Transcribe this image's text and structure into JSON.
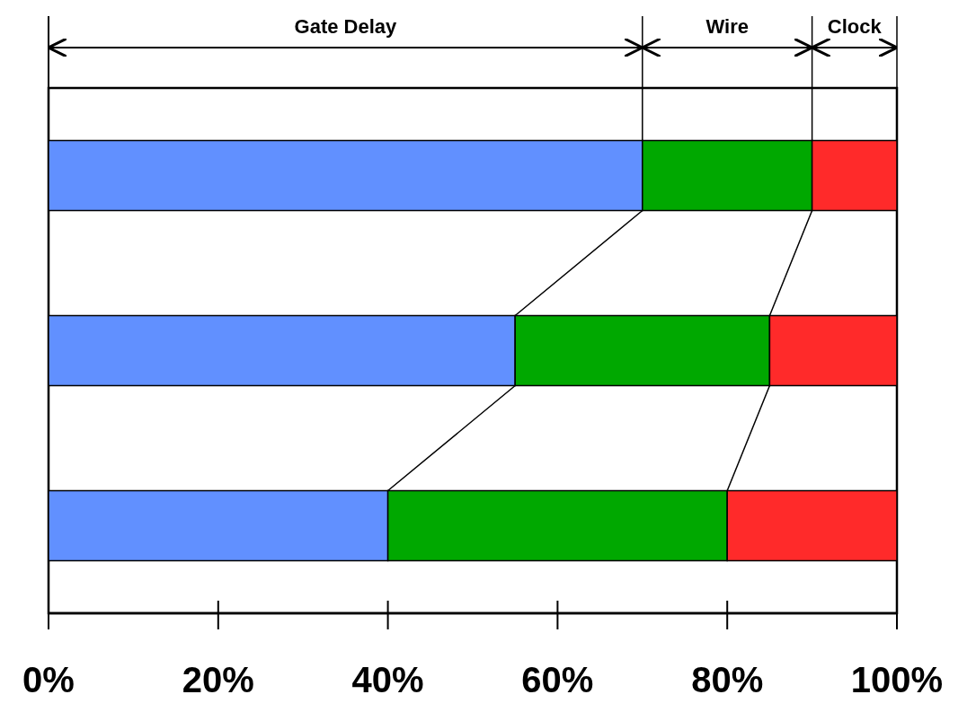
{
  "chart_data": {
    "type": "bar",
    "orientation": "horizontal",
    "stacked": true,
    "categories": [
      null,
      null,
      null
    ],
    "series": [
      {
        "color": "#6190ff",
        "values": [
          70,
          55,
          40
        ]
      },
      {
        "color": "#00a800",
        "values": [
          20,
          30,
          40
        ]
      },
      {
        "color": "#ff2a2a",
        "values": [
          10,
          15,
          20
        ]
      }
    ],
    "annotations": [
      "Gate Delay",
      "Wire",
      "Clock"
    ],
    "xlim": [
      0,
      100
    ],
    "xticks": [
      {
        "value": 0,
        "label": "0%"
      },
      {
        "value": 20,
        "label": "20%"
      },
      {
        "value": 40,
        "label": "40%"
      },
      {
        "value": 60,
        "label": "60%"
      },
      {
        "value": 80,
        "label": "80%"
      },
      {
        "value": 100,
        "label": "100%"
      }
    ]
  }
}
